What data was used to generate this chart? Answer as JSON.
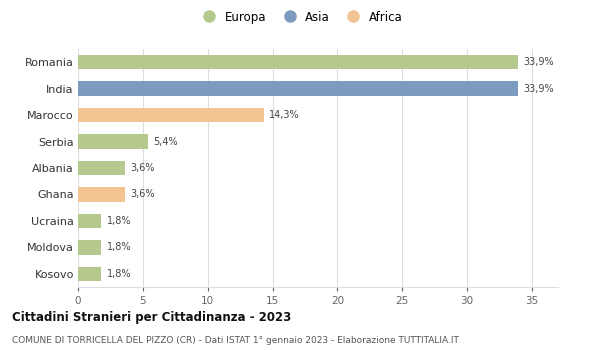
{
  "countries": [
    "Romania",
    "India",
    "Marocco",
    "Serbia",
    "Albania",
    "Ghana",
    "Ucraina",
    "Moldova",
    "Kosovo"
  ],
  "values": [
    33.9,
    33.9,
    14.3,
    5.4,
    3.6,
    3.6,
    1.8,
    1.8,
    1.8
  ],
  "labels": [
    "33,9%",
    "33,9%",
    "14,3%",
    "5,4%",
    "3,6%",
    "3,6%",
    "1,8%",
    "1,8%",
    "1,8%"
  ],
  "colors": [
    "#b5c98e",
    "#7b9bbf",
    "#f2c491",
    "#b5c98e",
    "#b5c98e",
    "#f2c491",
    "#b5c98e",
    "#b5c98e",
    "#b5c98e"
  ],
  "legend_labels": [
    "Europa",
    "Asia",
    "Africa"
  ],
  "legend_colors": [
    "#b5c98e",
    "#7b9bbf",
    "#f2c491"
  ],
  "xlim": [
    0,
    37
  ],
  "xticks": [
    0,
    5,
    10,
    15,
    20,
    25,
    30,
    35
  ],
  "title": "Cittadini Stranieri per Cittadinanza - 2023",
  "subtitle": "COMUNE DI TORRICELLA DEL PIZZO (CR) - Dati ISTAT 1° gennaio 2023 - Elaborazione TUTTITALIA.IT",
  "bg_color": "#ffffff",
  "grid_color": "#dddddd",
  "bar_height": 0.55
}
